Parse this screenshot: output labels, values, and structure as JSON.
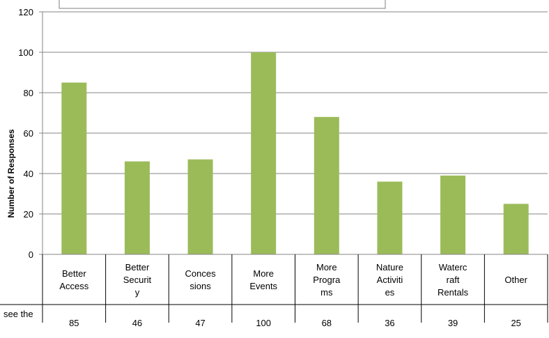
{
  "chart_data": {
    "type": "bar",
    "categories": [
      [
        "Better",
        "Access"
      ],
      [
        "Better",
        "Securit",
        "y"
      ],
      [
        "Conces",
        "sions"
      ],
      [
        "More",
        "Events"
      ],
      [
        "More",
        "Progra",
        "ms"
      ],
      [
        "Nature",
        "Activiti",
        "es"
      ],
      [
        "Waterc",
        "raft",
        "Rentals"
      ],
      [
        "Other"
      ]
    ],
    "values": [
      85,
      46,
      47,
      100,
      68,
      36,
      39,
      25
    ],
    "value_labels": [
      "85",
      "46",
      "47",
      "100",
      "68",
      "36",
      "39",
      "25"
    ],
    "ylabel": "Number of Responses",
    "ylim": [
      0,
      120
    ],
    "yticks": [
      "0",
      "20",
      "40",
      "60",
      "80",
      "100",
      "120"
    ],
    "table_row_label": "see the",
    "bar_color": "#9bbb59",
    "grid": true,
    "legend": "none"
  }
}
